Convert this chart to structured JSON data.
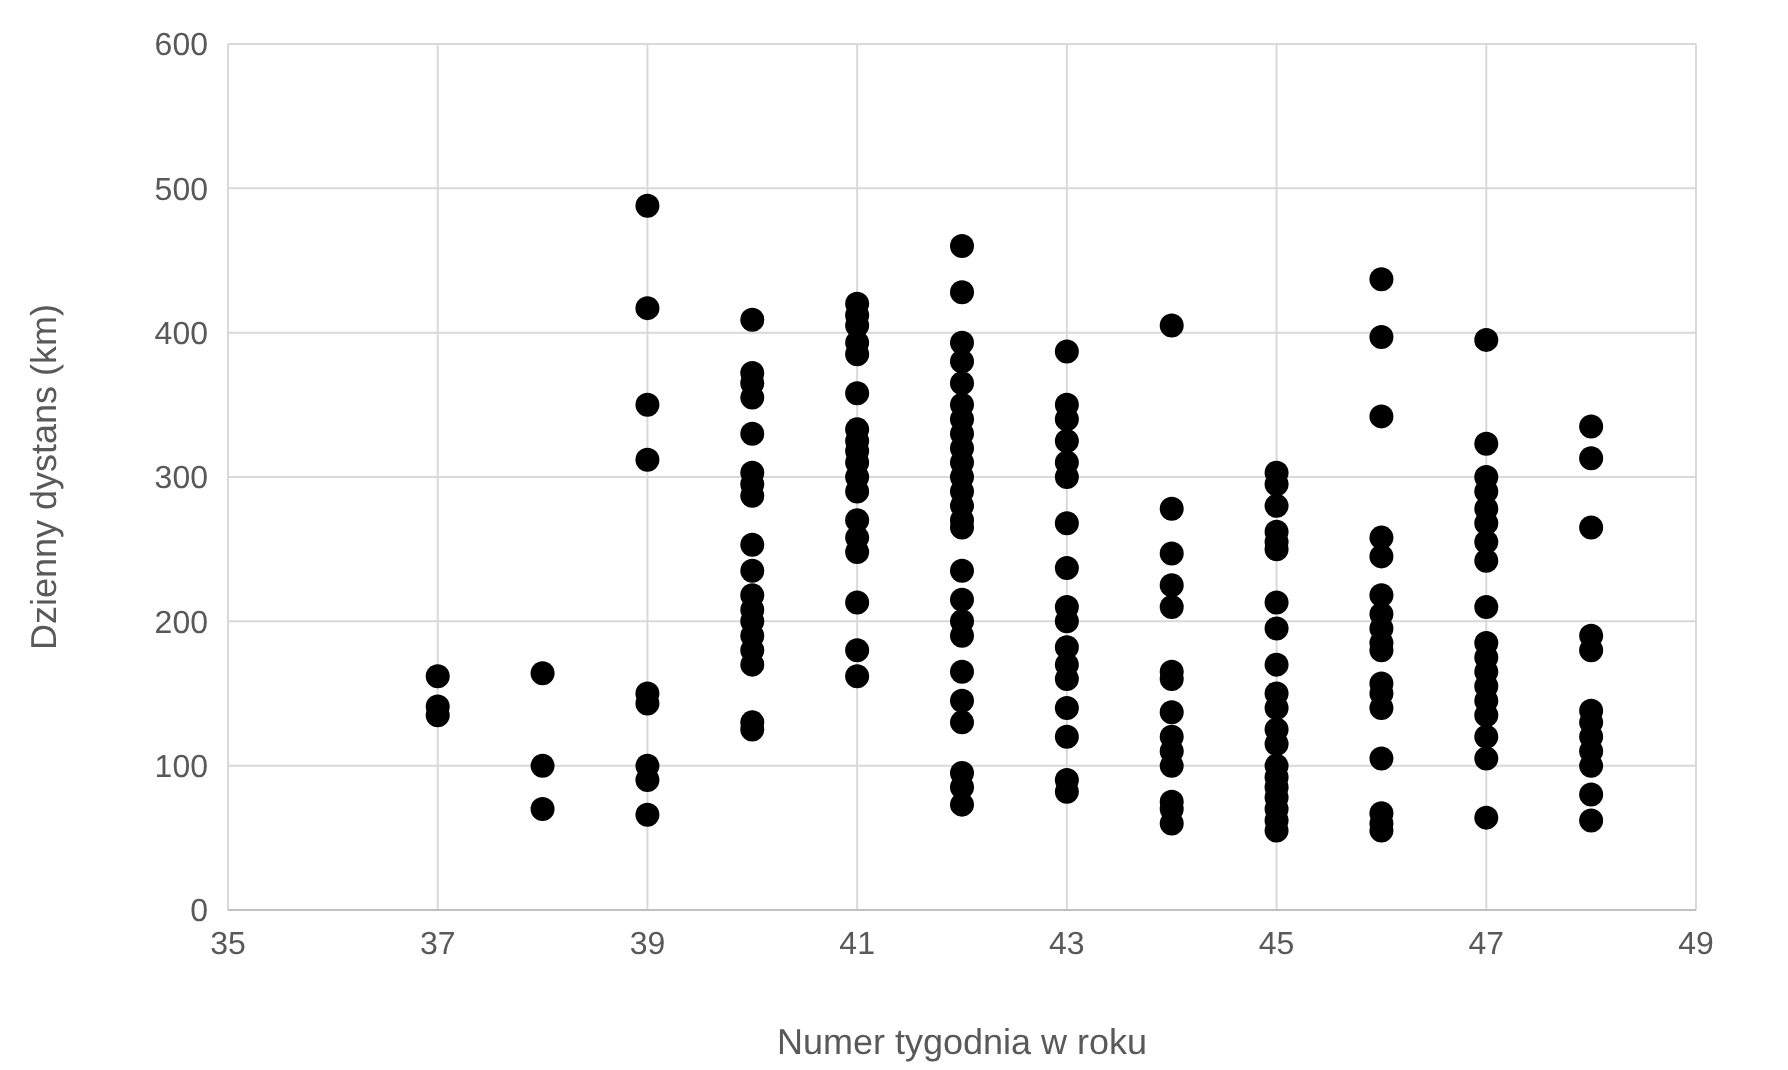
{
  "chart_data": {
    "type": "scatter",
    "xlabel": "Numer tygodnia w roku",
    "ylabel": "Dzienny dystans (km)",
    "xlim": [
      35,
      49
    ],
    "xticks": [
      35,
      37,
      39,
      41,
      43,
      45,
      47,
      49
    ],
    "ylim": [
      0,
      600
    ],
    "yticks": [
      0,
      100,
      200,
      300,
      400,
      500,
      600
    ],
    "grid": true,
    "marker": "circle",
    "series": [
      {
        "color": "#000000",
        "x": [
          37,
          37,
          37,
          38,
          38,
          38,
          39,
          39,
          39,
          39,
          39,
          39,
          39,
          39,
          39,
          40,
          40,
          40,
          40,
          40,
          40,
          40,
          40,
          40,
          40,
          40,
          40,
          40,
          40,
          40,
          40,
          40,
          40,
          41,
          41,
          41,
          41,
          41,
          41,
          41,
          41,
          41,
          41,
          41,
          41,
          41,
          41,
          41,
          41,
          41,
          41,
          42,
          42,
          42,
          42,
          42,
          42,
          42,
          42,
          42,
          42,
          42,
          42,
          42,
          42,
          42,
          42,
          42,
          42,
          42,
          42,
          42,
          42,
          42,
          42,
          42,
          43,
          43,
          43,
          43,
          43,
          43,
          43,
          43,
          43,
          43,
          43,
          43,
          43,
          43,
          43,
          43,
          43,
          44,
          44,
          44,
          44,
          44,
          44,
          44,
          44,
          44,
          44,
          44,
          44,
          44,
          44,
          45,
          45,
          45,
          45,
          45,
          45,
          45,
          45,
          45,
          45,
          45,
          45,
          45,
          45,
          45,
          45,
          45,
          45,
          45,
          45,
          46,
          46,
          46,
          46,
          46,
          46,
          46,
          46,
          46,
          46,
          46,
          46,
          46,
          46,
          46,
          46,
          46,
          47,
          47,
          47,
          47,
          47,
          47,
          47,
          47,
          47,
          47,
          47,
          47,
          47,
          47,
          47,
          47,
          47,
          47,
          48,
          48,
          48,
          48,
          48,
          48,
          48,
          48,
          48,
          48,
          48,
          48
        ],
        "values": [
          162,
          141,
          135,
          164,
          100,
          70,
          488,
          417,
          350,
          312,
          150,
          143,
          100,
          90,
          66,
          409,
          372,
          365,
          355,
          330,
          303,
          295,
          287,
          253,
          235,
          218,
          208,
          200,
          190,
          180,
          170,
          130,
          125,
          420,
          412,
          405,
          393,
          385,
          358,
          333,
          325,
          318,
          310,
          300,
          290,
          270,
          258,
          248,
          213,
          180,
          162,
          460,
          428,
          393,
          380,
          365,
          350,
          340,
          330,
          320,
          310,
          300,
          290,
          280,
          270,
          265,
          235,
          215,
          200,
          190,
          165,
          145,
          130,
          95,
          85,
          73,
          387,
          350,
          340,
          325,
          310,
          300,
          268,
          237,
          210,
          200,
          182,
          170,
          160,
          140,
          120,
          90,
          82,
          405,
          278,
          247,
          225,
          210,
          165,
          160,
          137,
          120,
          110,
          100,
          75,
          70,
          60,
          303,
          295,
          280,
          262,
          255,
          250,
          213,
          195,
          170,
          150,
          140,
          125,
          115,
          100,
          92,
          85,
          78,
          70,
          62,
          55,
          437,
          397,
          342,
          258,
          245,
          218,
          205,
          195,
          185,
          180,
          157,
          150,
          140,
          105,
          67,
          60,
          55,
          395,
          323,
          300,
          290,
          278,
          268,
          255,
          242,
          210,
          185,
          175,
          165,
          155,
          145,
          135,
          120,
          105,
          64,
          335,
          313,
          265,
          190,
          180,
          138,
          130,
          120,
          110,
          100,
          80,
          62
        ]
      }
    ]
  }
}
